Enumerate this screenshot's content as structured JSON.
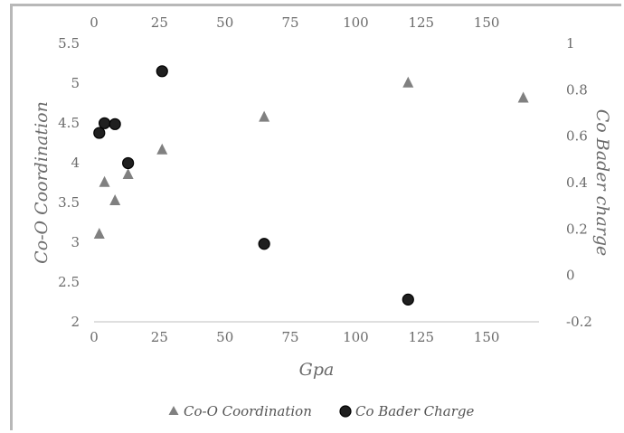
{
  "chart_data": {
    "type": "scatter",
    "xlabel": "Gpa",
    "ylabel": "Co-O Coordination",
    "y2label": "Co Bader charge",
    "xlim": [
      0,
      170
    ],
    "ylim": [
      2,
      5.5
    ],
    "y2lim": [
      -0.2,
      1
    ],
    "xticks": [
      "0",
      "25",
      "50",
      "75",
      "100",
      "125",
      "150"
    ],
    "x2ticks": [
      "0",
      "25",
      "50",
      "75",
      "100",
      "125",
      "150"
    ],
    "yticks": [
      "2",
      "2.5",
      "3",
      "3.5",
      "4",
      "4.5",
      "5",
      "5.5"
    ],
    "y2ticks": [
      "-0.2",
      "0",
      "0.2",
      "0.4",
      "0.6",
      "0.8",
      "1"
    ],
    "grid": false,
    "legend_position": "bottom",
    "series": [
      {
        "name": "Co-O Coordination",
        "axis": "left",
        "marker": "triangle",
        "color": "#808080",
        "x": [
          2,
          4,
          8,
          13,
          26,
          65,
          120,
          164
        ],
        "y": [
          3.1,
          3.75,
          3.52,
          3.85,
          4.16,
          4.57,
          5.0,
          4.81
        ]
      },
      {
        "name": "Co Bader Charge",
        "axis": "right",
        "marker": "circle",
        "color": "#1f1f1f",
        "x": [
          2,
          4,
          8,
          13,
          26,
          65,
          120
        ],
        "y": [
          0.614,
          0.656,
          0.652,
          0.484,
          0.88,
          0.136,
          -0.104
        ]
      }
    ]
  }
}
